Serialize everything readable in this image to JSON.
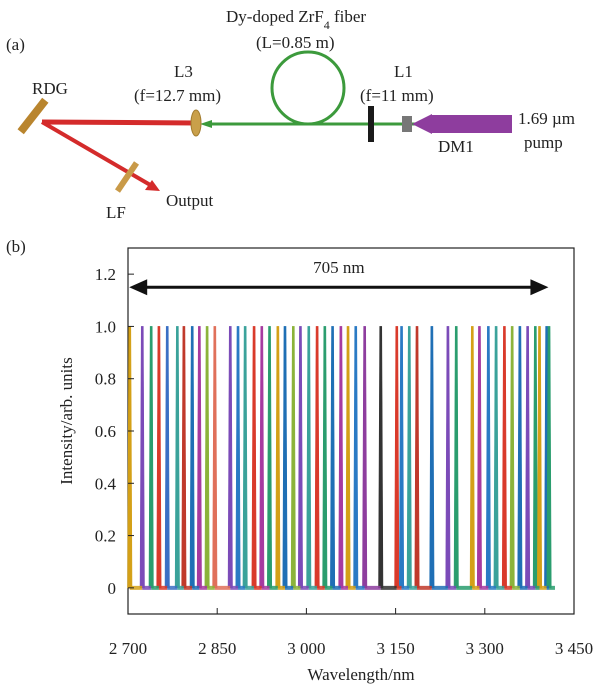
{
  "panel_a": {
    "panel_label": "(a)",
    "fiber_label_prefix": "Dy-doped ZrF",
    "fiber_label_sub": "4",
    "fiber_label_suffix": " fiber",
    "fiber_length": "(L=0.85 m)",
    "l3_name": "L3",
    "l3_focal": "(f=12.7 mm)",
    "l1_name": "L1",
    "l1_focal": "(f=11 mm)",
    "rdg": "RDG",
    "lf": "LF",
    "output": "Output",
    "dm1": "DM1",
    "pump_line1": "1.69 µm",
    "pump_line2": "pump",
    "colors": {
      "beam": "#d42b2b",
      "fiber": "#3c9a3c",
      "pump": "#8e3d9e",
      "optic": "#c9a04a",
      "mirror": "#1a1a1a"
    }
  },
  "panel_b": {
    "panel_label": "(b)"
  },
  "chart_data": {
    "type": "line",
    "xlabel": "Wavelength/nm",
    "ylabel": "Intensity/arb. units",
    "xlim": [
      2700,
      3450
    ],
    "ylim": [
      -0.1,
      1.3
    ],
    "x_ticks": [
      2700,
      2850,
      3000,
      3150,
      3300,
      3450
    ],
    "x_tick_labels": [
      "2 700",
      "2 850",
      "3 000",
      "3 150",
      "3 300",
      "3 450"
    ],
    "y_ticks": [
      0,
      0.2,
      0.4,
      0.6,
      0.8,
      1.0,
      1.2
    ],
    "y_tick_labels": [
      "0",
      "0.2",
      "0.4",
      "0.6",
      "0.8",
      "1.0",
      "1.2"
    ],
    "annotation": {
      "text": "705 nm",
      "x_start": 2702,
      "x_end": 3407,
      "y": 1.15
    },
    "peak_height": 1.0,
    "peaks": [
      {
        "x": 2703,
        "color": "#d4a017"
      },
      {
        "x": 2724,
        "color": "#7b4bb8"
      },
      {
        "x": 2739,
        "color": "#2a9d6e"
      },
      {
        "x": 2752,
        "color": "#d93a2b"
      },
      {
        "x": 2766,
        "color": "#3a6fc4"
      },
      {
        "x": 2783,
        "color": "#3aa29a"
      },
      {
        "x": 2794,
        "color": "#c0392b"
      },
      {
        "x": 2808,
        "color": "#1f6fb5"
      },
      {
        "x": 2820,
        "color": "#a63aa0"
      },
      {
        "x": 2833,
        "color": "#8bb33a"
      },
      {
        "x": 2846,
        "color": "#e0705a"
      },
      {
        "x": 2872,
        "color": "#7b4bb8"
      },
      {
        "x": 2885,
        "color": "#2a7ac4"
      },
      {
        "x": 2897,
        "color": "#3aa29a"
      },
      {
        "x": 2912,
        "color": "#d93a2b"
      },
      {
        "x": 2925,
        "color": "#a63aa0"
      },
      {
        "x": 2938,
        "color": "#2a9d6e"
      },
      {
        "x": 2952,
        "color": "#d4a017"
      },
      {
        "x": 2964,
        "color": "#1f6fb5"
      },
      {
        "x": 2978,
        "color": "#8bb33a"
      },
      {
        "x": 2990,
        "color": "#7b4bb8"
      },
      {
        "x": 3004,
        "color": "#3aa29a"
      },
      {
        "x": 3018,
        "color": "#d93a2b"
      },
      {
        "x": 3031,
        "color": "#2a9d6e"
      },
      {
        "x": 3044,
        "color": "#1f6fb5"
      },
      {
        "x": 3058,
        "color": "#a63aa0"
      },
      {
        "x": 3070,
        "color": "#d4a017"
      },
      {
        "x": 3083,
        "color": "#2a7ac4"
      },
      {
        "x": 3098,
        "color": "#8e3d9e"
      },
      {
        "x": 3125,
        "color": "#333333"
      },
      {
        "x": 3152,
        "color": "#d93a2b"
      },
      {
        "x": 3160,
        "color": "#2a7ac4"
      },
      {
        "x": 3173,
        "color": "#3aa29a"
      },
      {
        "x": 3186,
        "color": "#c0392b"
      },
      {
        "x": 3211,
        "color": "#1f6fb5"
      },
      {
        "x": 3238,
        "color": "#7b4bb8"
      },
      {
        "x": 3252,
        "color": "#2a9d6e"
      },
      {
        "x": 3279,
        "color": "#d4a017"
      },
      {
        "x": 3291,
        "color": "#a63aa0"
      },
      {
        "x": 3306,
        "color": "#2a7ac4"
      },
      {
        "x": 3319,
        "color": "#3aa29a"
      },
      {
        "x": 3333,
        "color": "#d93a2b"
      },
      {
        "x": 3346,
        "color": "#8bb33a"
      },
      {
        "x": 3359,
        "color": "#1f6fb5"
      },
      {
        "x": 3372,
        "color": "#7b4bb8"
      },
      {
        "x": 3385,
        "color": "#2a9d6e"
      },
      {
        "x": 3392,
        "color": "#d4a017"
      },
      {
        "x": 3404,
        "color": "#1f6fb5"
      },
      {
        "x": 3408,
        "color": "#2a9d6e"
      }
    ]
  }
}
